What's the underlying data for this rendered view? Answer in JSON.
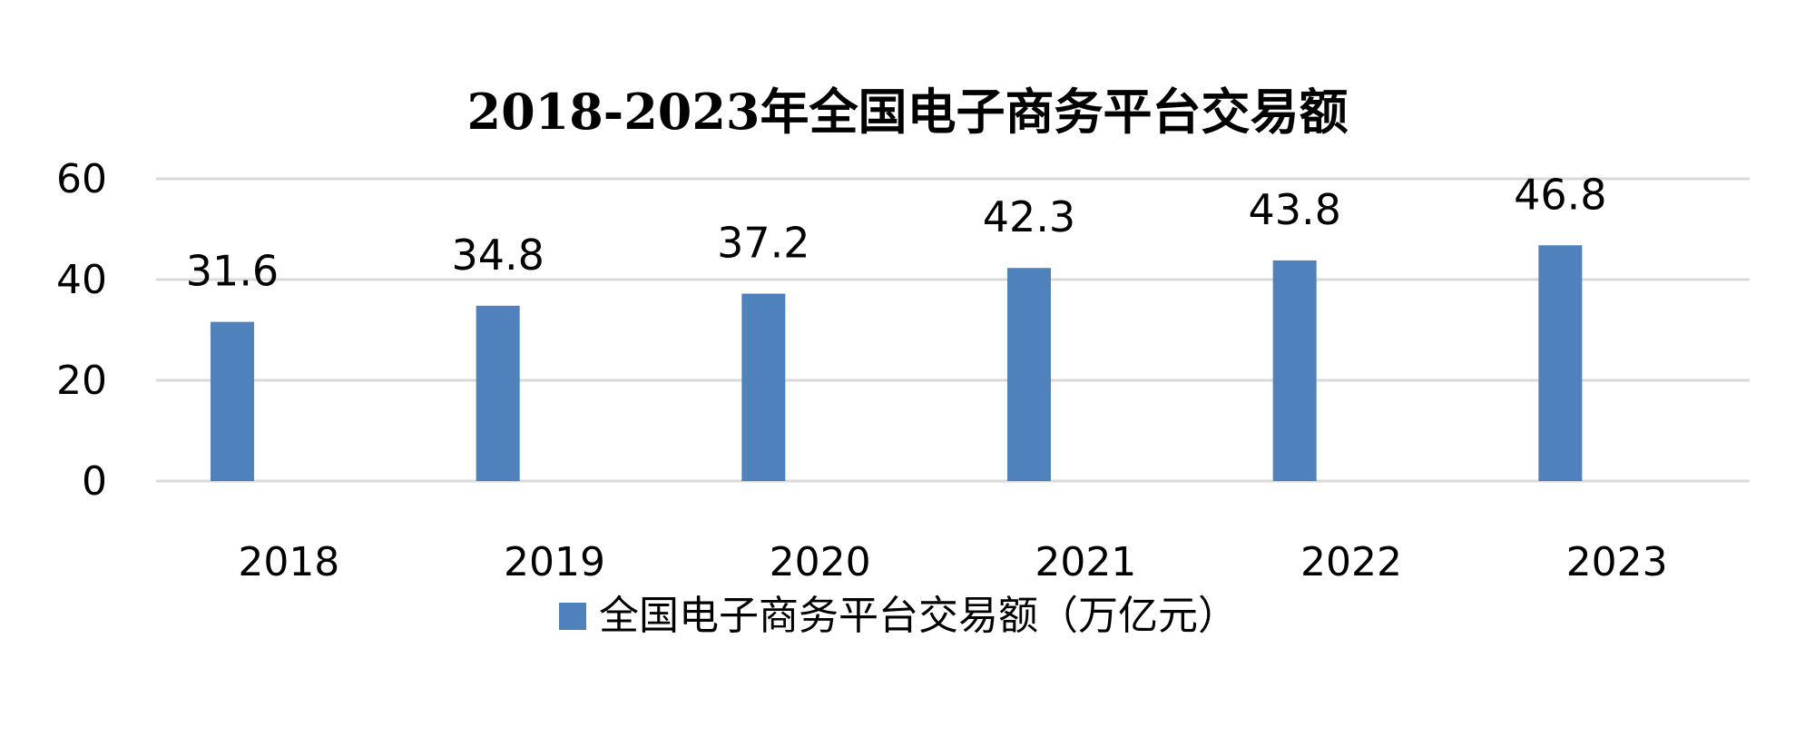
{
  "chart_data": {
    "type": "bar",
    "title": "2018-2023年全国电子商务平台交易额",
    "categories": [
      "2018",
      "2019",
      "2020",
      "2021",
      "2022",
      "2023"
    ],
    "series": [
      {
        "name": "全国电子商务平台交易额（万亿元）",
        "values": [
          31.6,
          34.8,
          37.2,
          42.3,
          43.8,
          46.8
        ],
        "color": "#4F81BD"
      }
    ],
    "data_labels": [
      "31.6",
      "34.8",
      "37.2",
      "42.3",
      "43.8",
      "46.8"
    ],
    "y_ticks": [
      "0",
      "20",
      "40",
      "60"
    ],
    "ylim": [
      0,
      60
    ],
    "grid": true,
    "legend_position": "bottom",
    "xlabel": "",
    "ylabel": ""
  }
}
